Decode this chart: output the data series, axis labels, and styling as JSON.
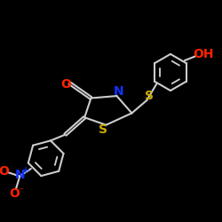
{
  "bg_color": "#000000",
  "bond_color": "#cccccc",
  "bond_width": 1.5,
  "figsize": [
    2.5,
    2.5
  ],
  "dpi": 100,
  "colors": {
    "O": "#ff2200",
    "N": "#1133ff",
    "S": "#ccaa00",
    "C": "#cccccc"
  },
  "label_fontsize": 10
}
